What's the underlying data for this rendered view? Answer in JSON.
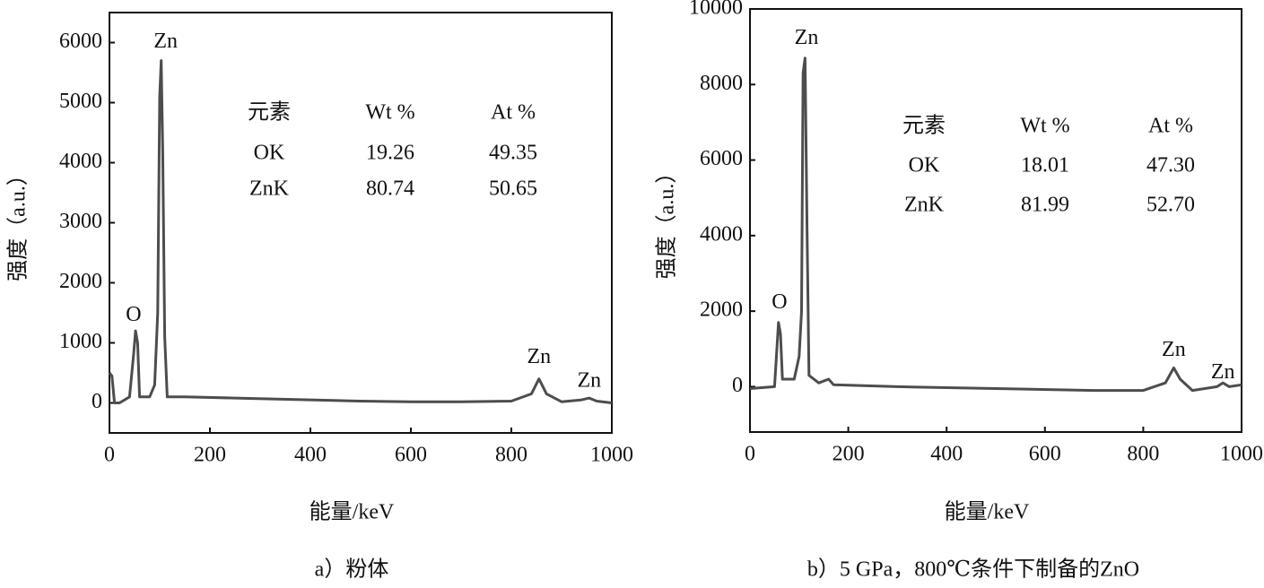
{
  "chart_data": [
    {
      "type": "line",
      "xlabel": "能量/keV",
      "ylabel": "强度（a.u.）",
      "caption": "a）粉体",
      "xlim": [
        0,
        1000
      ],
      "xticks": [
        0,
        200,
        400,
        600,
        800,
        1000
      ],
      "ylim": [
        -500,
        6500
      ],
      "yticks": [
        0,
        1000,
        2000,
        3000,
        4000,
        5000,
        6000
      ],
      "color": "#4d4d4d",
      "x": [
        0,
        5,
        10,
        20,
        40,
        48,
        52,
        56,
        60,
        80,
        90,
        96,
        100,
        103,
        106,
        110,
        115,
        150,
        250,
        400,
        500,
        600,
        700,
        800,
        840,
        855,
        870,
        900,
        940,
        955,
        970,
        1000
      ],
      "values": [
        500,
        450,
        0,
        0,
        100,
        800,
        1200,
        1000,
        100,
        100,
        300,
        1500,
        5100,
        5700,
        4200,
        1100,
        100,
        100,
        80,
        50,
        30,
        20,
        20,
        30,
        150,
        400,
        150,
        20,
        50,
        80,
        30,
        0
      ],
      "annotations": [
        {
          "text": "O",
          "x": 48,
          "y": 1450
        },
        {
          "text": "Zn",
          "x": 112,
          "y": 6000
        },
        {
          "text": "Zn",
          "x": 855,
          "y": 750
        },
        {
          "text": "Zn",
          "x": 955,
          "y": 350
        }
      ],
      "table": {
        "header": [
          "元素",
          "Wt %",
          "At %"
        ],
        "rows": [
          [
            "OK",
            "19.26",
            "49.35"
          ],
          [
            "ZnK",
            "80.74",
            "50.65"
          ]
        ]
      }
    },
    {
      "type": "line",
      "xlabel": "能量/keV",
      "ylabel": "强度（a.u.）",
      "caption": "b）5 GPa，800℃条件下制备的ZnO",
      "xlim": [
        0,
        1000
      ],
      "xticks": [
        0,
        200,
        400,
        600,
        800,
        1000
      ],
      "ylim": [
        -1200,
        10000
      ],
      "yticks": [
        0,
        2000,
        4000,
        6000,
        8000,
        10000
      ],
      "color": "#4d4d4d",
      "x": [
        0,
        50,
        58,
        62,
        66,
        90,
        100,
        105,
        108,
        112,
        116,
        120,
        140,
        160,
        170,
        300,
        500,
        700,
        800,
        845,
        862,
        875,
        900,
        950,
        962,
        975,
        1000
      ],
      "values": [
        -50,
        0,
        1700,
        1400,
        200,
        200,
        800,
        2000,
        8300,
        8700,
        4200,
        300,
        100,
        200,
        50,
        0,
        -50,
        -100,
        -100,
        100,
        500,
        200,
        -100,
        0,
        100,
        0,
        50
      ],
      "annotations": [
        {
          "text": "O",
          "x": 60,
          "y": 2200
        },
        {
          "text": "Zn",
          "x": 115,
          "y": 9200
        },
        {
          "text": "Zn",
          "x": 862,
          "y": 950
        },
        {
          "text": "Zn",
          "x": 962,
          "y": 360
        }
      ],
      "table": {
        "header": [
          "元素",
          "Wt %",
          "At %"
        ],
        "rows": [
          [
            "OK",
            "18.01",
            "47.30"
          ],
          [
            "ZnK",
            "81.99",
            "52.70"
          ]
        ]
      }
    }
  ]
}
